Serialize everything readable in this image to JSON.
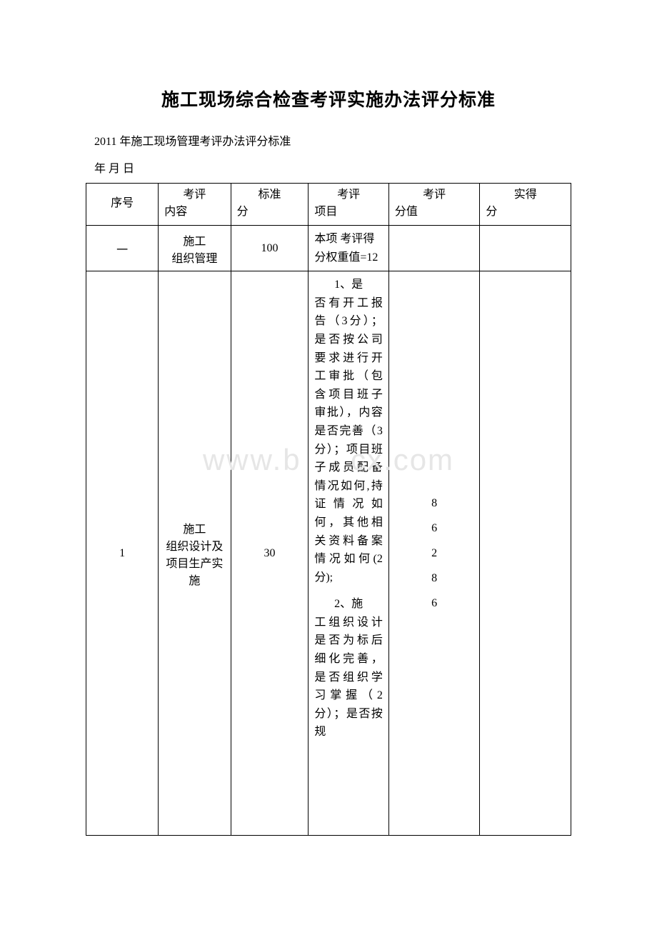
{
  "title": "施工现场综合检查考评实施办法评分标准",
  "subtitle": "2011 年施工现场管理考评办法评分标准",
  "dateline": "年 月 日",
  "watermark_parts": [
    "www.b",
    "cx.com"
  ],
  "headers": {
    "h1_line1": "序号",
    "h2_line1": "考评",
    "h2_line2": "内容",
    "h3_line1": "标准",
    "h3_line2": "分",
    "h4_line1": "考评",
    "h4_line2": "项目",
    "h5_line1": "考评",
    "h5_line2": "分值",
    "h6_line1": "实得",
    "h6_line2": "分"
  },
  "rows": [
    {
      "seq": "一",
      "content": "施工\n组织管理",
      "std_score": "100",
      "project_first": "本项",
      "project_rest": "考评得分权重值=12",
      "value": "",
      "actual": ""
    },
    {
      "seq": "1",
      "content": "施工\n组织设计及项目生产实施",
      "std_score": "30",
      "paras": [
        {
          "first": "1、是",
          "rest": "否有开工报告（3分）；是否按公司要求进行开工审批（包含项目班子审批），内容是否完善（3 分）；项目班子成员配备情况如何,持证情况如何，其他相关资料备案情况如何(2 分);"
        },
        {
          "first": "2、施",
          "rest": "工组织设计是否为标后细化完善，是否组织学习掌握（2 分）；是否按规"
        }
      ],
      "value": "8\n6\n2\n8\n6",
      "actual": ""
    }
  ],
  "colors": {
    "text": "#000000",
    "border": "#000000",
    "bg": "#ffffff",
    "watermark": "#e6e6e6"
  }
}
